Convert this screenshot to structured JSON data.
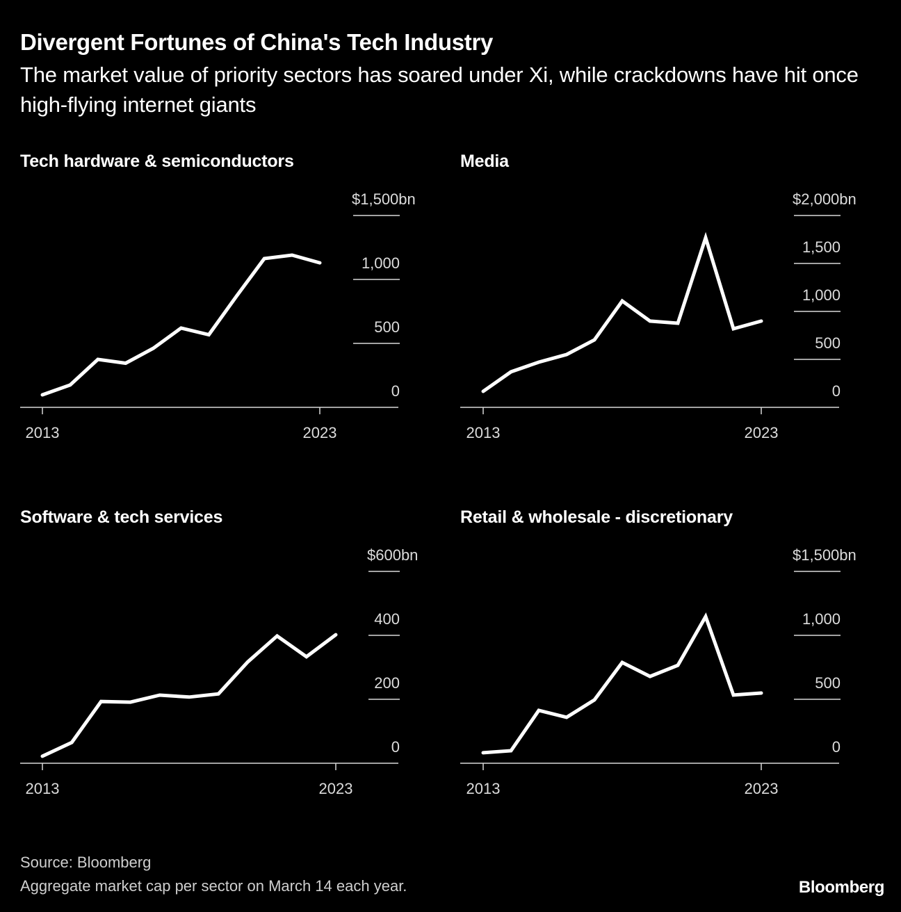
{
  "header": {
    "title": "Divergent Fortunes of China's Tech Industry",
    "subtitle": "The market value of priority sectors has soared under Xi, while crackdowns have hit once high-flying internet giants"
  },
  "footer": {
    "source": "Source: Bloomberg",
    "note": "Aggregate market cap per sector on March 14 each year.",
    "brand": "Bloomberg"
  },
  "colors": {
    "background": "#000000",
    "line": "#ffffff",
    "grid": "#d9d9d9",
    "text": "#ffffff",
    "muted_text": "#cfcfcf"
  },
  "chart_data": [
    {
      "type": "line",
      "title": "Tech hardware & semiconductors",
      "x": [
        2013,
        2014,
        2015,
        2016,
        2017,
        2018,
        2019,
        2020,
        2021,
        2022,
        2023
      ],
      "values": [
        98,
        175,
        375,
        345,
        462,
        620,
        568,
        870,
        1163,
        1190,
        1130
      ],
      "x_tick_labels": [
        "2013",
        "2023"
      ],
      "y_ticks": [
        0,
        500,
        1000,
        1500
      ],
      "y_tick_labels": [
        "0",
        "500",
        "1,000",
        "$1,500bn"
      ],
      "ylim": [
        0,
        1500
      ],
      "unit": "$bn",
      "grid": true,
      "y_axis_side": "right"
    },
    {
      "type": "line",
      "title": "Media",
      "x": [
        2013,
        2014,
        2015,
        2016,
        2017,
        2018,
        2019,
        2020,
        2021,
        2022,
        2023
      ],
      "values": [
        167,
        370,
        471,
        551,
        703,
        1109,
        899,
        877,
        1768,
        819,
        899
      ],
      "x_tick_labels": [
        "2013",
        "2023"
      ],
      "y_ticks": [
        0,
        500,
        1000,
        1500,
        2000
      ],
      "y_tick_labels": [
        "0",
        "500",
        "1,000",
        "1,500",
        "$2,000bn"
      ],
      "ylim": [
        0,
        2000
      ],
      "unit": "$bn",
      "grid": true,
      "y_axis_side": "right"
    },
    {
      "type": "line",
      "title": "Software & tech services",
      "x": [
        2013,
        2014,
        2015,
        2016,
        2017,
        2018,
        2019,
        2020,
        2021,
        2022,
        2023
      ],
      "values": [
        22,
        65,
        193,
        191,
        213,
        207,
        217,
        317,
        398,
        333,
        402
      ],
      "x_tick_labels": [
        "2013",
        "2023"
      ],
      "y_ticks": [
        0,
        200,
        400,
        600
      ],
      "y_tick_labels": [
        "0",
        "200",
        "400",
        "$600bn"
      ],
      "ylim": [
        0,
        600
      ],
      "unit": "$bn",
      "grid": true,
      "y_axis_side": "right"
    },
    {
      "type": "line",
      "title": "Retail & wholesale - discretionary",
      "x": [
        2013,
        2014,
        2015,
        2016,
        2017,
        2018,
        2019,
        2020,
        2021,
        2022,
        2023
      ],
      "values": [
        82,
        98,
        413,
        359,
        495,
        788,
        679,
        766,
        1147,
        533,
        549
      ],
      "x_tick_labels": [
        "2013",
        "2023"
      ],
      "y_ticks": [
        0,
        500,
        1000,
        1500
      ],
      "y_tick_labels": [
        "0",
        "500",
        "1,000",
        "$1,500bn"
      ],
      "ylim": [
        0,
        1500
      ],
      "unit": "$bn",
      "grid": true,
      "y_axis_side": "right"
    }
  ]
}
